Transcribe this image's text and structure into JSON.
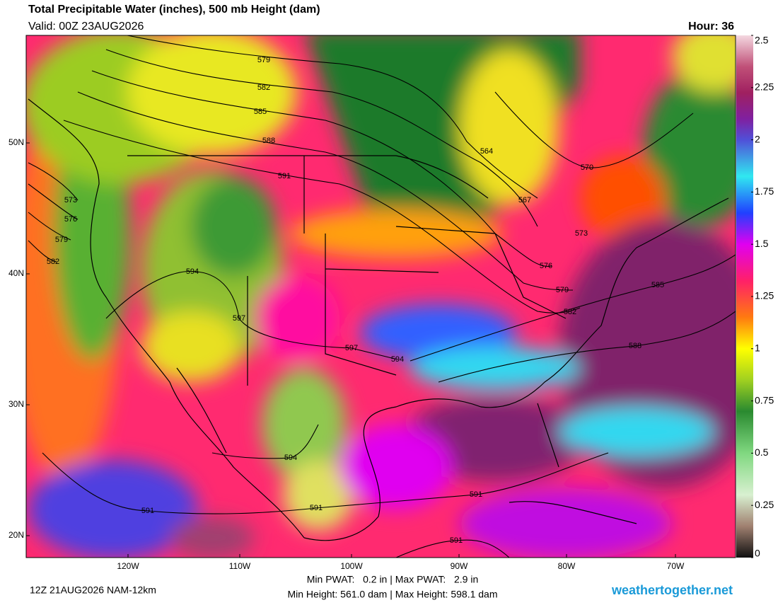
{
  "header": {
    "title": "Total Precipitable Water (inches), 500 mb Height (dam)",
    "valid": "Valid: 00Z 23AUG2026",
    "hour": "Hour: 36"
  },
  "map": {
    "lat_labels": [
      "50N",
      "40N",
      "30N",
      "20N"
    ],
    "lon_labels": [
      "120W",
      "110W",
      "100W",
      "90W",
      "80W",
      "70W"
    ],
    "contour_labels": [
      "579",
      "582",
      "585",
      "588",
      "591",
      "573",
      "576",
      "579",
      "582",
      "594",
      "597",
      "597",
      "594",
      "564",
      "567",
      "570",
      "573",
      "576",
      "579",
      "582",
      "585",
      "588",
      "594",
      "591",
      "591",
      "591",
      "591"
    ]
  },
  "colorbar": {
    "range": [
      0,
      2.5
    ],
    "ticks": [
      2.5,
      2.25,
      2,
      1.75,
      1.5,
      1.25,
      1,
      0.75,
      0.5,
      0.25,
      0
    ]
  },
  "footer": {
    "run": "12Z 21AUG2026 NAM-12km",
    "pwat": "Min PWAT:   0.2 in | Max PWAT:   2.9 in",
    "height": "Min Height: 561.0 dam | Max Height: 598.1 dam",
    "site": "weathertogether.net"
  }
}
